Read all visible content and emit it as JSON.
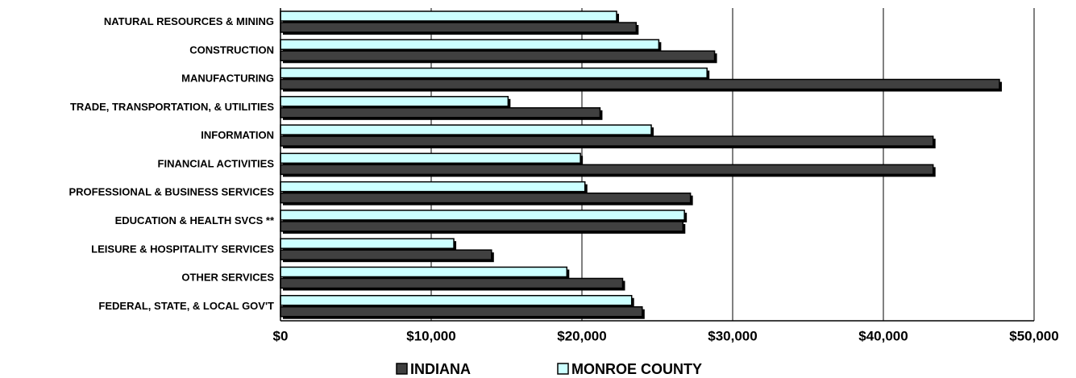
{
  "chart_data": {
    "type": "hbar",
    "categories": [
      "NATURAL RESOURCES & MINING",
      "CONSTRUCTION",
      "MANUFACTURING",
      "TRADE, TRANSPORTATION, & UTILITIES",
      "INFORMATION",
      "FINANCIAL ACTIVITIES",
      "PROFESSIONAL & BUSINESS SERVICES",
      "EDUCATION & HEALTH SVCS **",
      "LEISURE & HOSPITALITY SERVICES",
      "OTHER SERVICES",
      "FEDERAL, STATE, & LOCAL GOV'T"
    ],
    "series": [
      {
        "name": "INDIANA",
        "color": "#404040",
        "values": [
          23600,
          28800,
          47700,
          21200,
          43300,
          43300,
          27200,
          26700,
          14000,
          22700,
          24000
        ]
      },
      {
        "name": "MONROE COUNTY",
        "color": "#ccffff",
        "values": [
          22300,
          25100,
          28300,
          15100,
          24600,
          19900,
          20200,
          26800,
          11500,
          19000,
          23300
        ]
      }
    ],
    "xlim": [
      0,
      50000
    ],
    "xticks": [
      {
        "value": 0,
        "label": "$0"
      },
      {
        "value": 10000,
        "label": "$10,000"
      },
      {
        "value": 20000,
        "label": "$20,000"
      },
      {
        "value": 30000,
        "label": "$30,000"
      },
      {
        "value": 40000,
        "label": "$40,000"
      },
      {
        "value": 50000,
        "label": "$50,000"
      }
    ],
    "grid": true,
    "legend": "bottom"
  }
}
